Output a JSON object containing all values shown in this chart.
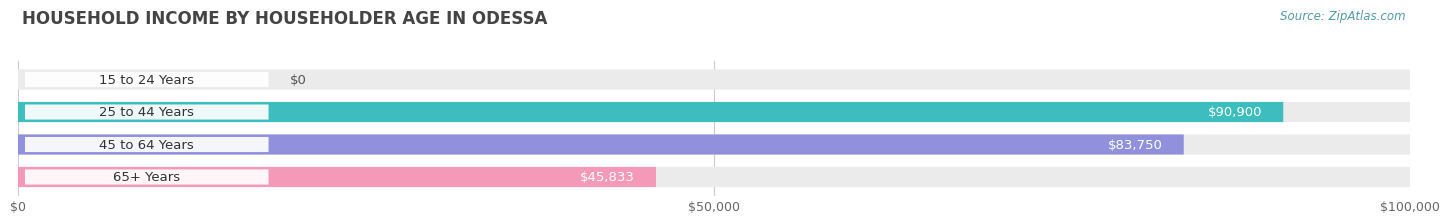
{
  "title": "HOUSEHOLD INCOME BY HOUSEHOLDER AGE IN ODESSA",
  "source": "Source: ZipAtlas.com",
  "categories": [
    "15 to 24 Years",
    "25 to 44 Years",
    "45 to 64 Years",
    "65+ Years"
  ],
  "values": [
    0,
    90900,
    83750,
    45833
  ],
  "bar_colors": [
    "#d4a0d0",
    "#3dbdbd",
    "#9090dd",
    "#f599b8"
  ],
  "bar_bg_color": "#ebebeb",
  "xlim": [
    0,
    100000
  ],
  "xticks": [
    0,
    50000,
    100000
  ],
  "xtick_labels": [
    "$0",
    "$50,000",
    "$100,000"
  ],
  "value_labels": [
    "$0",
    "$90,900",
    "$83,750",
    "$45,833"
  ],
  "background_color": "#ffffff",
  "title_fontsize": 12,
  "source_fontsize": 8.5,
  "label_fontsize": 9.5,
  "tick_fontsize": 9,
  "bar_height": 0.62,
  "label_color_inside": "#ffffff",
  "label_color_outside": "#555555",
  "grid_color": "#cccccc",
  "title_color": "#444444",
  "cat_label_color": "#333333"
}
